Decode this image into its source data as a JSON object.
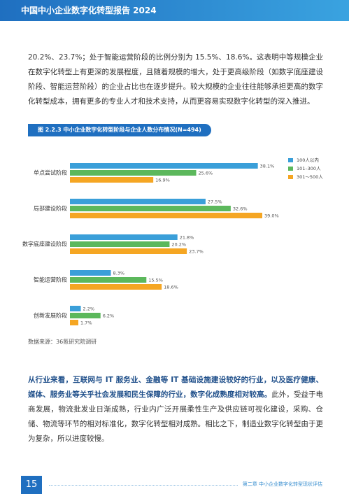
{
  "header": {
    "title": "中国中小企业数字化转型报告 2024"
  },
  "paragraphs": [
    "20.2%、23.7%；处于智能运营阶段的比例分别为 15.5%、18.6%。这表明中等规模企业在数字化转型上有更深的发展程度，且随着规模的增大，处于更高级阶段（如数字底座建设阶段、智能运营阶段）的企业占比也在逐步提升。较大规模的企业往往能够承担更高的数字化转型成本，拥有更多的专业人才和技术支持，从而更容易实现数字化转型的深入推进。"
  ],
  "chart_data": {
    "type": "bar",
    "orientation": "horizontal",
    "title": "图 2.2.3 中小企业数字化转型阶段与企业人数分布情况(N=494)",
    "categories": [
      "单点尝试阶段",
      "局部建设阶段",
      "数字底座建设阶段",
      "智能运营阶段",
      "创新发展阶段"
    ],
    "series": [
      {
        "name": "100人以内",
        "color": "#3a9fd9",
        "values": [
          38.1,
          27.5,
          21.8,
          8.3,
          2.2
        ],
        "value_labels": [
          "38.1%",
          "27.5%",
          "21.8%",
          "8.3%",
          "2.2%"
        ]
      },
      {
        "name": "101–300人",
        "color": "#5cb85c",
        "values": [
          25.6,
          32.6,
          20.2,
          15.5,
          6.2
        ],
        "value_labels": [
          "25.6%",
          "32.6%",
          "20.2%",
          "15.5%",
          "6.2%"
        ]
      },
      {
        "name": "301～500人",
        "color": "#f5a623",
        "values": [
          16.9,
          39.0,
          23.7,
          18.6,
          1.7
        ],
        "value_labels": [
          "16.9%",
          "39.0%",
          "23.7%",
          "18.6%",
          "1.7%"
        ]
      }
    ],
    "source": "数据来源：36氪研究院调研"
  },
  "section": {
    "bold": "从行业来看，互联网与 IT 服务业、金融等 IT 基础设施建设较好的行业，以及医疗健康、媒体、服务业等关乎社会发展和民生保障的行业，数字化成熟度相对较高。",
    "text": "此外，受益于电商发展，物流批发业日渐成熟，行业内广泛开展柔性生产及供应链可视化建设，采购、仓储、物流等环节的相对标准化，数字化转型相对成熟。相比之下，制造业数字化转型由于更为复杂，所以进度较慢。"
  },
  "footer": {
    "page": "15",
    "chapter": "第二章 中小企业数字化转型现状评估"
  }
}
